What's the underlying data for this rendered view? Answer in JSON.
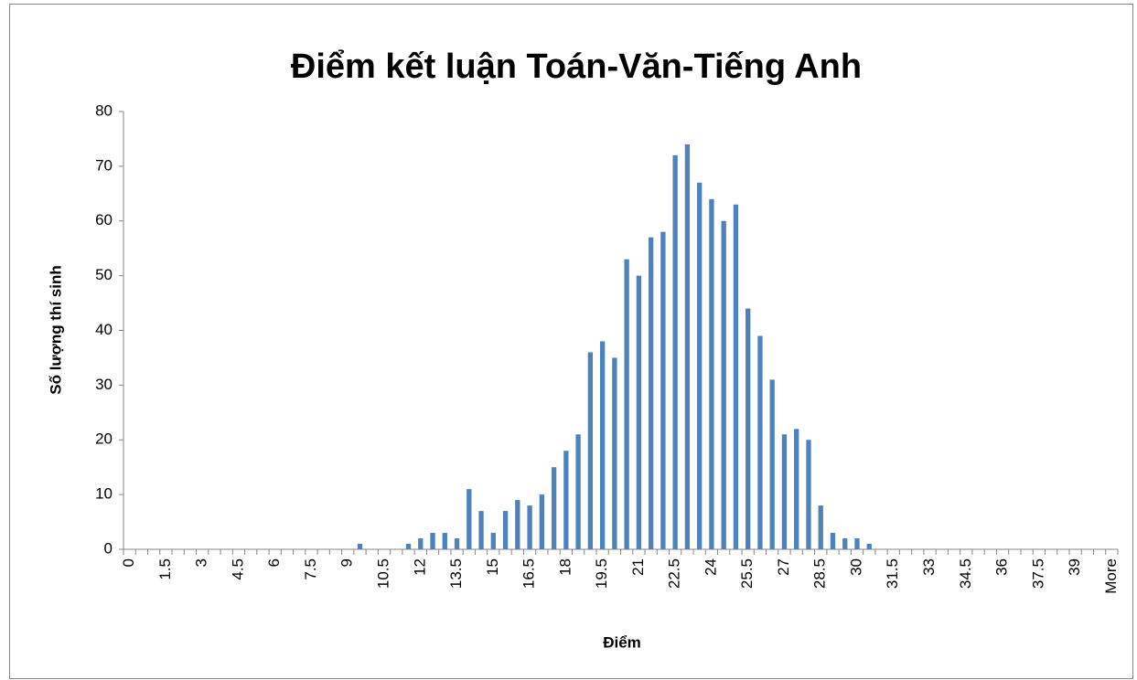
{
  "chart_data": {
    "type": "bar",
    "title": "Điểm kết luận Toán-Văn-Tiếng Anh",
    "x_label": "Điểm",
    "y_label": "Số lượng thí sinh",
    "categories": [
      "0",
      null,
      null,
      "1.5",
      null,
      null,
      "3",
      null,
      null,
      "4.5",
      null,
      null,
      "6",
      null,
      null,
      "7.5",
      null,
      null,
      "9",
      null,
      null,
      "10.5",
      null,
      null,
      "12",
      null,
      null,
      "13.5",
      null,
      null,
      "15",
      null,
      null,
      "16.5",
      null,
      null,
      "18",
      null,
      null,
      "19.5",
      null,
      null,
      "21",
      null,
      null,
      "22.5",
      null,
      null,
      "24",
      null,
      null,
      "25.5",
      null,
      null,
      "27",
      null,
      null,
      "28.5",
      null,
      null,
      "30",
      null,
      null,
      "31.5",
      null,
      null,
      "33",
      null,
      null,
      "34.5",
      null,
      null,
      "36",
      null,
      null,
      "37.5",
      null,
      null,
      "39",
      null,
      null,
      "More"
    ],
    "values": [
      0,
      0,
      0,
      0,
      0,
      0,
      0,
      0,
      0,
      0,
      0,
      0,
      0,
      0,
      0,
      0,
      0,
      0,
      0,
      1,
      0,
      0,
      0,
      1,
      2,
      3,
      3,
      2,
      11,
      7,
      3,
      7,
      9,
      8,
      10,
      15,
      18,
      21,
      36,
      38,
      35,
      53,
      50,
      57,
      58,
      72,
      74,
      67,
      64,
      60,
      63,
      44,
      39,
      31,
      21,
      22,
      20,
      8,
      3,
      2,
      2,
      1,
      0,
      0,
      0,
      0,
      0,
      0,
      0,
      0,
      0,
      0,
      0,
      0,
      0,
      0,
      0,
      0,
      0,
      0,
      0,
      0
    ],
    "color": "#4f81bd",
    "ylim": [
      0,
      80
    ],
    "yticks": [
      0,
      10,
      20,
      30,
      40,
      50,
      60,
      70,
      80
    ],
    "grid": false
  }
}
